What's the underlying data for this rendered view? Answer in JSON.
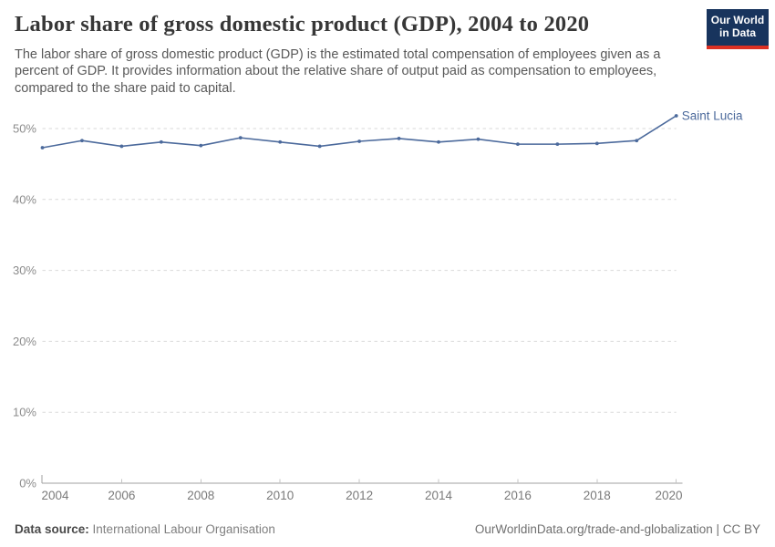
{
  "header": {
    "title": "Labor share of gross domestic product (GDP), 2004 to 2020",
    "subtitle": "The labor share of gross domestic product (GDP) is the estimated total compensation of employees given as a percent of GDP. It provides information about the relative share of output paid as compensation to employees, compared to the share paid to capital.",
    "logo": {
      "line1": "Our World",
      "line2": "in Data"
    }
  },
  "colors": {
    "series_blue": "#4C6A9C",
    "logo_navy": "#18345d",
    "logo_red": "#dc3022",
    "grid_gray": "#dadada",
    "axis_gray": "#a0a0a0",
    "tick_gray": "#c4c4c4",
    "axis_label_gray": "#8c8c8c",
    "x_label_gray": "#7a7a7a"
  },
  "chart_data": {
    "type": "line",
    "title": "Labor share of gross domestic product (GDP), 2004 to 2020",
    "xlabel": "",
    "ylabel": "",
    "grid": "horizontal-dashed",
    "legend_position": "end-of-line-label",
    "axis": {
      "x_min": 2004,
      "x_max": 2020,
      "y_min": 0,
      "y_max": 50
    },
    "x_ticks": [
      2004,
      2006,
      2008,
      2010,
      2012,
      2014,
      2016,
      2018,
      2020
    ],
    "y_ticks": [
      0,
      10,
      20,
      30,
      40,
      50
    ],
    "y_tick_suffix": "%",
    "series": [
      {
        "name": "Saint Lucia",
        "color": "#4C6A9C",
        "x": [
          2004,
          2005,
          2006,
          2007,
          2008,
          2009,
          2010,
          2011,
          2012,
          2013,
          2014,
          2015,
          2016,
          2017,
          2018,
          2019,
          2020
        ],
        "values": [
          47.3,
          48.3,
          47.5,
          48.1,
          47.6,
          48.7,
          48.1,
          47.5,
          48.2,
          48.6,
          48.1,
          48.5,
          47.8,
          47.8,
          47.9,
          48.3,
          51.8
        ]
      }
    ]
  },
  "footer": {
    "source_label": "Data source:",
    "source_value": "International Labour Organisation",
    "license": "OurWorldinData.org/trade-and-globalization | CC BY"
  }
}
